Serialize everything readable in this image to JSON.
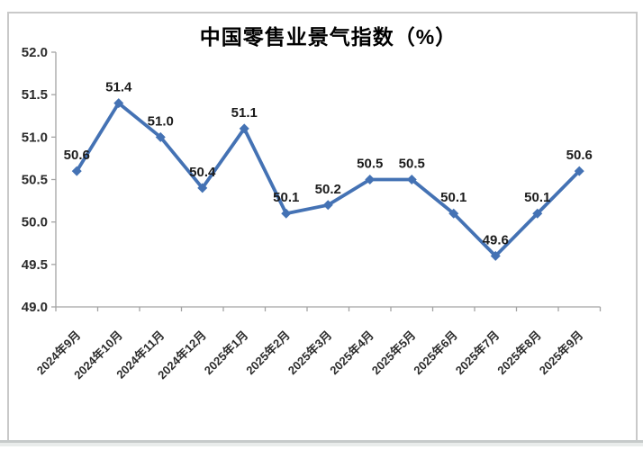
{
  "frame": {
    "border_color": "#c9c9c9"
  },
  "chart_data": {
    "type": "line",
    "title": "中国零售业景气指数（%）",
    "categories": [
      "2024年9月",
      "2024年10月",
      "2024年11月",
      "2024年12月",
      "2025年1月",
      "2025年2月",
      "2025年3月",
      "2025年4月",
      "2025年5月",
      "2025年6月",
      "2025年7月",
      "2025年8月",
      "2025年9月"
    ],
    "values": [
      50.6,
      51.4,
      51.0,
      50.4,
      51.1,
      50.1,
      50.2,
      50.5,
      50.5,
      50.1,
      49.6,
      50.1,
      50.6
    ],
    "data_labels": [
      "50.6",
      "51.4",
      "51.0",
      "50.4",
      "51.1",
      "50.1",
      "50.2",
      "50.5",
      "50.5",
      "50.1",
      "49.6",
      "50.1",
      "50.6"
    ],
    "ylim": [
      49.0,
      52.0
    ],
    "ytick_step": 0.5,
    "ytick_labels": [
      "49.0",
      "49.5",
      "50.0",
      "50.5",
      "51.0",
      "51.5",
      "52.0"
    ],
    "xlabel": "",
    "ylabel": "",
    "grid": false,
    "legend": "none",
    "marker": "diamond",
    "line_color": "#4472b4",
    "axis_color": "#a3a3a3",
    "x_label_rotation_deg": -45
  }
}
